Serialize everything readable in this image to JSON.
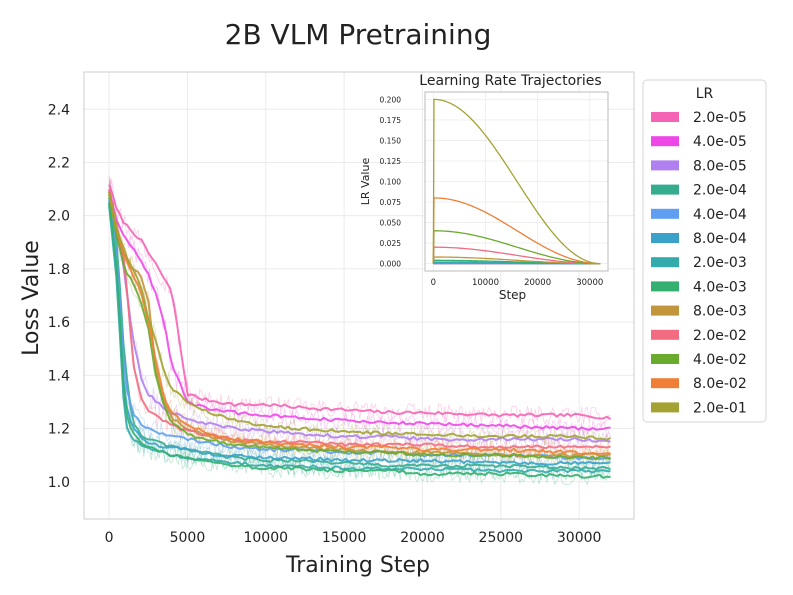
{
  "chart_data": [
    {
      "type": "line",
      "title": "2B VLM Pretraining",
      "xlabel": "Training Step",
      "ylabel": "Loss Value",
      "xlim": [
        -1600,
        33500
      ],
      "ylim": [
        0.86,
        2.54
      ],
      "xticks": [
        0,
        5000,
        10000,
        15000,
        20000,
        25000,
        30000
      ],
      "xtick_labels": [
        "0",
        "5000",
        "10000",
        "15000",
        "20000",
        "25000",
        "30000"
      ],
      "yticks": [
        1.0,
        1.2,
        1.4,
        1.6,
        1.8,
        2.0,
        2.2,
        2.4
      ],
      "ytick_labels": [
        "1.0",
        "1.2",
        "1.4",
        "1.6",
        "1.8",
        "2.0",
        "2.2",
        "2.4"
      ],
      "grid": true,
      "legend": {
        "title": "LR",
        "placement": "outside-right"
      },
      "x": [
        0,
        500,
        1000,
        1500,
        2000,
        2500,
        3000,
        3500,
        4000,
        5000,
        6000,
        7000,
        8000,
        10000,
        12000,
        15000,
        18000,
        20000,
        25000,
        30000,
        32000
      ],
      "series": [
        {
          "name": "2.0e-05",
          "color": "#f564b4",
          "values": [
            2.12,
            2.02,
            1.97,
            1.94,
            1.91,
            1.86,
            1.82,
            1.76,
            1.72,
            1.33,
            1.31,
            1.3,
            1.29,
            1.29,
            1.28,
            1.27,
            1.26,
            1.26,
            1.25,
            1.25,
            1.24
          ]
        },
        {
          "name": "4.0e-05",
          "color": "#ee47e8",
          "values": [
            2.1,
            1.97,
            1.92,
            1.88,
            1.84,
            1.78,
            1.7,
            1.6,
            1.44,
            1.3,
            1.28,
            1.27,
            1.26,
            1.25,
            1.24,
            1.23,
            1.22,
            1.22,
            1.21,
            1.2,
            1.2
          ]
        },
        {
          "name": "8.0e-05",
          "color": "#b07ff0",
          "values": [
            2.09,
            1.95,
            1.78,
            1.55,
            1.4,
            1.33,
            1.3,
            1.28,
            1.26,
            1.24,
            1.22,
            1.21,
            1.2,
            1.19,
            1.18,
            1.17,
            1.17,
            1.16,
            1.16,
            1.16,
            1.15
          ]
        },
        {
          "name": "2.0e-04",
          "color": "#36ac8f",
          "values": [
            2.07,
            1.9,
            1.45,
            1.22,
            1.18,
            1.16,
            1.15,
            1.14,
            1.13,
            1.12,
            1.11,
            1.1,
            1.09,
            1.08,
            1.08,
            1.07,
            1.06,
            1.06,
            1.06,
            1.05,
            1.05
          ]
        },
        {
          "name": "4.0e-04",
          "color": "#5f9ef0",
          "values": [
            2.06,
            1.85,
            1.38,
            1.26,
            1.22,
            1.2,
            1.19,
            1.18,
            1.17,
            1.16,
            1.15,
            1.14,
            1.13,
            1.12,
            1.12,
            1.11,
            1.11,
            1.1,
            1.1,
            1.09,
            1.09
          ]
        },
        {
          "name": "8.0e-04",
          "color": "#3aa2c9",
          "values": [
            2.05,
            1.8,
            1.3,
            1.2,
            1.17,
            1.15,
            1.14,
            1.13,
            1.13,
            1.12,
            1.11,
            1.1,
            1.1,
            1.09,
            1.09,
            1.08,
            1.08,
            1.08,
            1.07,
            1.07,
            1.07
          ]
        },
        {
          "name": "2.0e-03",
          "color": "#33aaab",
          "values": [
            2.04,
            1.75,
            1.22,
            1.16,
            1.14,
            1.13,
            1.12,
            1.11,
            1.1,
            1.09,
            1.08,
            1.08,
            1.07,
            1.06,
            1.06,
            1.05,
            1.05,
            1.05,
            1.04,
            1.04,
            1.04
          ]
        },
        {
          "name": "4.0e-03",
          "color": "#33b06f",
          "values": [
            2.05,
            1.8,
            1.28,
            1.18,
            1.15,
            1.13,
            1.12,
            1.11,
            1.1,
            1.09,
            1.08,
            1.07,
            1.06,
            1.05,
            1.05,
            1.04,
            1.04,
            1.03,
            1.03,
            1.02,
            1.02
          ]
        },
        {
          "name": "8.0e-03",
          "color": "#c2963a",
          "values": [
            2.08,
            1.92,
            1.85,
            1.8,
            1.78,
            1.68,
            1.42,
            1.3,
            1.24,
            1.2,
            1.18,
            1.16,
            1.15,
            1.14,
            1.13,
            1.12,
            1.11,
            1.11,
            1.1,
            1.1,
            1.1
          ]
        },
        {
          "name": "2.0e-02",
          "color": "#f26b81",
          "values": [
            2.1,
            1.96,
            1.82,
            1.46,
            1.32,
            1.27,
            1.25,
            1.23,
            1.21,
            1.19,
            1.18,
            1.17,
            1.16,
            1.15,
            1.15,
            1.14,
            1.14,
            1.14,
            1.13,
            1.13,
            1.13
          ]
        },
        {
          "name": "4.0e-02",
          "color": "#6aaa2d",
          "values": [
            2.08,
            1.92,
            1.8,
            1.75,
            1.68,
            1.58,
            1.4,
            1.28,
            1.22,
            1.18,
            1.16,
            1.15,
            1.14,
            1.13,
            1.12,
            1.11,
            1.11,
            1.1,
            1.1,
            1.09,
            1.09
          ]
        },
        {
          "name": "8.0e-02",
          "color": "#ef7f36",
          "values": [
            2.09,
            1.94,
            1.84,
            1.78,
            1.72,
            1.6,
            1.45,
            1.32,
            1.26,
            1.21,
            1.19,
            1.17,
            1.16,
            1.15,
            1.14,
            1.13,
            1.13,
            1.12,
            1.12,
            1.11,
            1.11
          ]
        },
        {
          "name": "2.0e-01",
          "color": "#a3a232",
          "values": [
            2.09,
            1.95,
            1.86,
            1.8,
            1.74,
            1.62,
            1.52,
            1.42,
            1.35,
            1.3,
            1.27,
            1.25,
            1.23,
            1.21,
            1.2,
            1.19,
            1.18,
            1.18,
            1.17,
            1.17,
            1.16
          ]
        }
      ]
    },
    {
      "type": "line",
      "title": "Learning Rate Trajectories",
      "xlabel": "Step",
      "ylabel": "LR Value",
      "xlim": [
        -1600,
        33500
      ],
      "ylim": [
        -0.009,
        0.209
      ],
      "xticks": [
        0,
        10000,
        20000,
        30000
      ],
      "xtick_labels": [
        "0",
        "10000",
        "20000",
        "30000"
      ],
      "yticks": [
        0.0,
        0.025,
        0.05,
        0.075,
        0.1,
        0.125,
        0.15,
        0.175,
        0.2
      ],
      "ytick_labels": [
        "0.000",
        "0.025",
        "0.050",
        "0.075",
        "0.100",
        "0.125",
        "0.150",
        "0.175",
        "0.200"
      ],
      "grid": true,
      "schedule": "warmup then cosine decay to 0 at step 32000",
      "peak_values": [
        2e-05,
        4e-05,
        8e-05,
        0.0002,
        0.0004,
        0.0008,
        0.002,
        0.004,
        0.008,
        0.02,
        0.04,
        0.08,
        0.2
      ],
      "colors": [
        "#f564b4",
        "#ee47e8",
        "#b07ff0",
        "#36ac8f",
        "#5f9ef0",
        "#3aa2c9",
        "#33aaab",
        "#33b06f",
        "#c2963a",
        "#f26b81",
        "#6aaa2d",
        "#ef7f36",
        "#a3a232"
      ]
    }
  ]
}
